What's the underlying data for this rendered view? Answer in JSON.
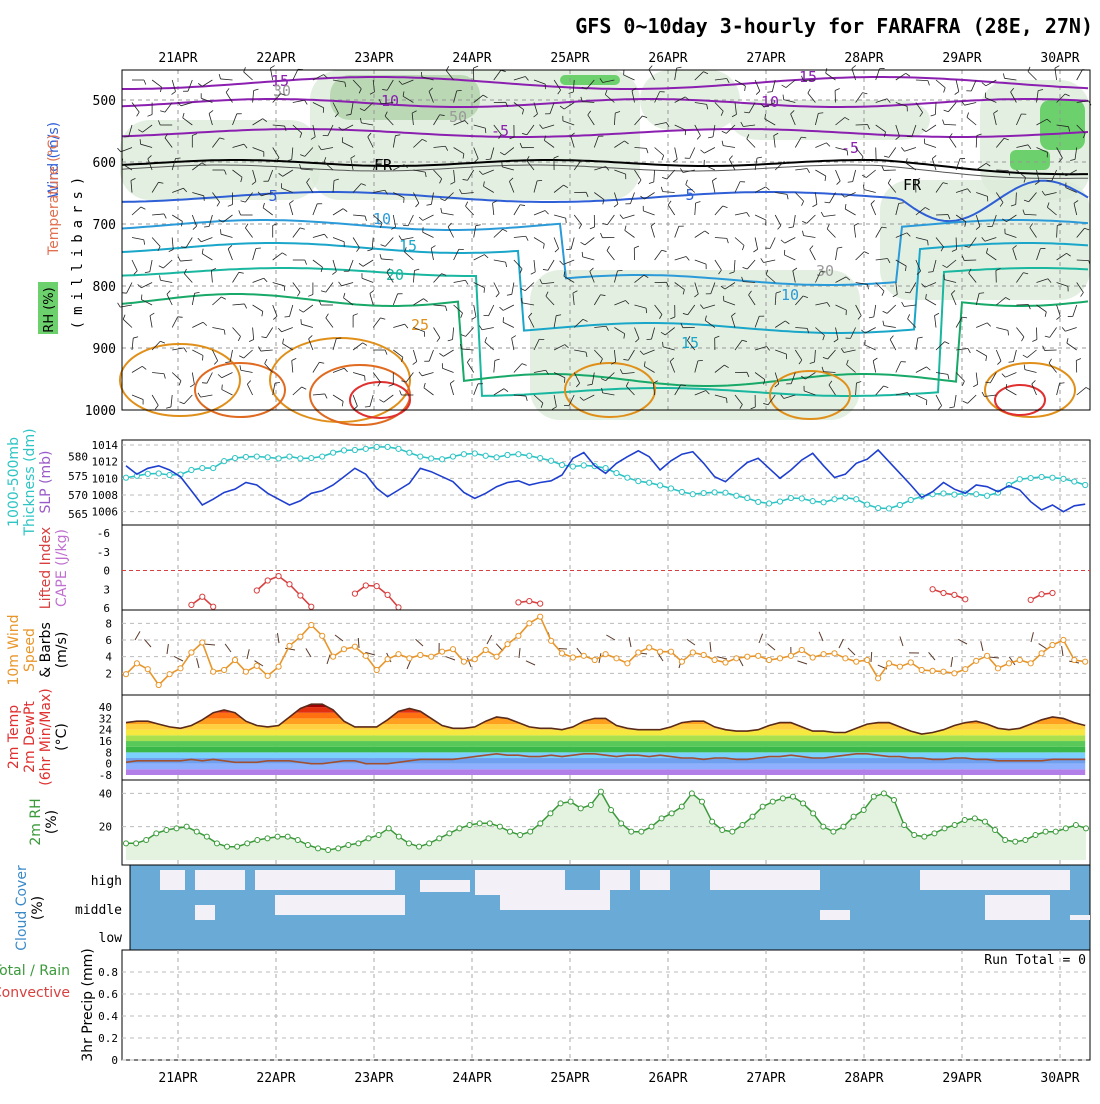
{
  "title": "GFS 0~10day 3-hourly for FARAFRA (28E, 27N)",
  "dates": [
    "21APR",
    "22APR",
    "23APR",
    "24APR",
    "25APR",
    "26APR",
    "27APR",
    "28APR",
    "29APR",
    "30APR"
  ],
  "colors": {
    "temp_purple": "#8b1fb0",
    "temp_blue": "#2f5fd6",
    "temp_cyan": "#1aa6c9",
    "temp_teal": "#19b6a0",
    "temp_orange": "#e0901a",
    "temp_red": "#e03030",
    "slp_line": "#1e3fcf",
    "thickness_line": "#2ec4c4",
    "cape": "#d84040",
    "wind10": "#e8962a",
    "rh2m": "#3a9a3a",
    "cloud": "#6aaad6",
    "rh_green": "#6cd06c"
  },
  "upper_panel": {
    "y_axis_label": "(millibars)",
    "side_labels": [
      "Wind (m/s)",
      "Temperature (°C)",
      "RH (%)"
    ],
    "pressure_ticks": [
      500,
      600,
      700,
      800,
      900,
      1000
    ],
    "isotherm_labels": [
      "15",
      "10",
      "-5",
      "FR",
      "5",
      "10",
      "15",
      "20",
      "25",
      "30",
      "10",
      "15",
      "5",
      "FR",
      "-5",
      "10",
      "15",
      "30",
      "50"
    ]
  },
  "panels": {
    "slp": {
      "labels": [
        "1000-500mb",
        "Thickness (dm)",
        "SLP (mb)"
      ]
    },
    "cape": {
      "labels": [
        "Lifted Index",
        "CAPE (J/kg)"
      ]
    },
    "wind10": {
      "labels": [
        "10m Wind",
        "Speed",
        "& Barbs",
        "(m/s)"
      ]
    },
    "temp2m": {
      "labels": [
        "2m Temp",
        "2m DewPt",
        "(6hr Min/Max)",
        "(°C)"
      ]
    },
    "rh2m": {
      "labels": [
        "2m RH",
        "(%)"
      ]
    },
    "cloud": {
      "labels": [
        "Cloud Cover",
        "(%)"
      ],
      "levels": [
        "high",
        "middle",
        "low"
      ]
    },
    "precip": {
      "labels": [
        "3hr Precip (mm)",
        "Total / Rain",
        "Convective"
      ],
      "run_total": "Run Total = 0"
    }
  },
  "chart_data": [
    {
      "type": "line",
      "title": "SLP (mb) / 1000-500mb Thickness (dm)",
      "series": [
        {
          "name": "SLP (mb)",
          "y_range": [
            1005,
            1014
          ],
          "values": [
            1011.5,
            1010.5,
            1011.2,
            1011.5,
            1011,
            1010.2,
            1008.5,
            1006.8,
            1007.5,
            1008.3,
            1008.7,
            1009.5,
            1009.2,
            1008.2,
            1007.5,
            1006.8,
            1007.3,
            1008.2,
            1008.5,
            1009.2,
            1010.2,
            1011.2,
            1010.5,
            1008.8,
            1007.8,
            1008.6,
            1009.4,
            1011.2,
            1010.8,
            1010.2,
            1009.6,
            1008.3,
            1007.6,
            1008.2,
            1009.0,
            1009.5,
            1009.7,
            1009.2,
            1009.5,
            1009.7,
            1010.4,
            1012.4,
            1013.1,
            1011.5,
            1010.6,
            1011.8,
            1012.6,
            1013.3,
            1012.6,
            1011.0,
            1012.1,
            1012.9,
            1013.2,
            1011.8,
            1010.2,
            1009.6,
            1010.8,
            1011.9,
            1012.4,
            1011.2,
            1010.0,
            1011.0,
            1012.2,
            1013.0,
            1011.5,
            1010.1,
            1010.5,
            1011.8,
            1012.3,
            1013.4,
            1012.0,
            1010.6,
            1009.2,
            1007.7,
            1008.4,
            1009.5,
            1008.7,
            1008.2,
            1009.2,
            1009.0,
            1008.4,
            1009.1,
            1008.6,
            1007.2,
            1006.2,
            1006.8,
            1006.0,
            1006.7,
            1006.9
          ]
        },
        {
          "name": "1000-500mb Thickness (dm)",
          "y_range": [
            563.5,
            583
          ],
          "values": [
            574.5,
            575.0,
            575.5,
            575.6,
            575.2,
            575.3,
            576.5,
            577.0,
            577.0,
            578.8,
            579.6,
            579.9,
            580.0,
            579.8,
            579.5,
            580.0,
            579.5,
            579.6,
            580.0,
            581.0,
            581.6,
            581.7,
            582.0,
            582.5,
            582.5,
            582.0,
            581.0,
            580.0,
            579.5,
            579.3,
            580.0,
            580.6,
            580.8,
            580.2,
            579.8,
            580.4,
            580.6,
            580.2,
            579.6,
            578.9,
            577.8,
            577.4,
            577.7,
            577.5,
            577.0,
            575.7,
            574.5,
            573.6,
            573.2,
            572.5,
            571.7,
            570.8,
            570.2,
            570.5,
            570.7,
            570.6,
            569.8,
            569.2,
            568.2,
            567.8,
            568.3,
            569.2,
            569.1,
            568.4,
            568.1,
            568.9,
            569.3,
            568.9,
            567.5,
            566.6,
            566.5,
            567.4,
            568.7,
            569.6,
            570.2,
            570.4,
            570.1,
            570.4,
            570.2,
            569.8,
            570.6,
            572.6,
            574.1,
            574.4,
            574.7,
            574.5,
            574.2,
            573.5,
            572.6
          ]
        }
      ],
      "x_range": [
        "21APR",
        "30APR"
      ]
    },
    {
      "type": "line",
      "title": "Lifted Index / CAPE (J/kg)",
      "series": [
        {
          "name": "Lifted Index",
          "y_range": [
            -6,
            6
          ],
          "values": [
            null,
            null,
            null,
            null,
            null,
            null,
            5.5,
            4.2,
            5.8,
            null,
            null,
            null,
            3.2,
            1.6,
            0.9,
            2.2,
            4.0,
            5.8,
            null,
            null,
            null,
            3.7,
            2.4,
            2.5,
            3.9,
            5.9,
            null,
            null,
            null,
            null,
            null,
            null,
            null,
            null,
            null,
            null,
            5.1,
            4.9,
            5.3,
            null,
            null,
            null,
            null,
            null,
            null,
            null,
            null,
            null,
            null,
            null,
            null,
            null,
            null,
            null,
            null,
            null,
            null,
            null,
            null,
            null,
            null,
            null,
            null,
            null,
            null,
            null,
            null,
            null,
            null,
            null,
            null,
            null,
            null,
            null,
            3.0,
            3.6,
            3.9,
            4.6,
            null,
            null,
            null,
            null,
            null,
            4.7,
            3.8,
            3.6,
            null,
            null,
            null
          ]
        }
      ],
      "y_ticks": [
        -6,
        -3,
        0,
        3,
        6
      ]
    },
    {
      "type": "line",
      "title": "10m Wind Speed & Barbs (m/s)",
      "y_range": [
        0,
        9
      ],
      "y_ticks": [
        2,
        4,
        6,
        8
      ],
      "series": [
        {
          "name": "10m Wind Speed",
          "values": [
            1.9,
            3.2,
            2.5,
            0.6,
            1.9,
            2.6,
            4.5,
            5.7,
            2.2,
            2.4,
            3.6,
            2.2,
            2.9,
            1.7,
            2.8,
            5.3,
            6.4,
            7.8,
            6.5,
            4.0,
            4.9,
            5.2,
            4.1,
            2.4,
            3.7,
            4.3,
            3.8,
            4.2,
            4.0,
            4.6,
            4.9,
            3.4,
            3.7,
            4.8,
            4.0,
            5.5,
            6.5,
            8.0,
            8.8,
            5.9,
            4.4,
            3.9,
            4.1,
            3.6,
            4.3,
            3.8,
            3.2,
            4.5,
            5.1,
            4.6,
            4.6,
            3.4,
            4.5,
            4.2,
            3.6,
            3.3,
            3.8,
            4.0,
            4.1,
            3.6,
            3.8,
            4.1,
            4.8,
            3.9,
            4.3,
            4.4,
            3.8,
            3.4,
            3.6,
            1.4,
            3.2,
            2.8,
            3.3,
            2.4,
            2.3,
            2.2,
            2.0,
            2.5,
            3.5,
            4.1,
            2.6,
            3.2,
            3.6,
            3.2,
            4.4,
            5.4,
            6.0,
            3.6,
            3.4
          ]
        }
      ]
    },
    {
      "type": "area",
      "title": "2m Temp / 2m DewPt (6hr Min/Max) (°C)",
      "y_range": [
        -8,
        45
      ],
      "y_ticks": [
        -8,
        0,
        8,
        16,
        24,
        32,
        40
      ],
      "series": [
        {
          "name": "2m Temp",
          "values": [
            29,
            30,
            30,
            28,
            26,
            25,
            27,
            31,
            36,
            38,
            36,
            30,
            27,
            26,
            27,
            33,
            39,
            42,
            42,
            38,
            30,
            26,
            26,
            26,
            31,
            37,
            39,
            37,
            32,
            27,
            25,
            25,
            26,
            30,
            33,
            32,
            29,
            26,
            25,
            25,
            24,
            26,
            30,
            32,
            32,
            27,
            25,
            24,
            24,
            24,
            26,
            29,
            30,
            30,
            26,
            24,
            23,
            23,
            24,
            27,
            29,
            29,
            26,
            23,
            23,
            22,
            22,
            25,
            28,
            29,
            29,
            26,
            23,
            21,
            22,
            24,
            27,
            29,
            30,
            28,
            25,
            24,
            25,
            28,
            31,
            33,
            32,
            29,
            27
          ]
        },
        {
          "name": "2m DewPt",
          "values": [
            1,
            2,
            2,
            2,
            2,
            2,
            3,
            2,
            3,
            2,
            1,
            1,
            1,
            2,
            2,
            2,
            1,
            0,
            0,
            1,
            2,
            2,
            0,
            0,
            0,
            1,
            2,
            3,
            3,
            3,
            3,
            4,
            5,
            6,
            7,
            6,
            6,
            5,
            5,
            6,
            5,
            6,
            7,
            7,
            6,
            5,
            6,
            6,
            5,
            6,
            5,
            4,
            4,
            3,
            4,
            4,
            3,
            3,
            4,
            5,
            5,
            6,
            5,
            4,
            4,
            5,
            6,
            7,
            7,
            6,
            5,
            5,
            4,
            4,
            3,
            3,
            4,
            4,
            3,
            3,
            2,
            2,
            2,
            2,
            2,
            3,
            3,
            3,
            3
          ]
        }
      ]
    },
    {
      "type": "area",
      "title": "2m RH (%)",
      "y_range": [
        0,
        45
      ],
      "y_ticks": [
        20,
        40
      ],
      "series": [
        {
          "name": "2m RH",
          "values": [
            10,
            10,
            12,
            16,
            18,
            19,
            20,
            17,
            14,
            10,
            8,
            8,
            10,
            12,
            13,
            14,
            14,
            12,
            9,
            7,
            6,
            7,
            9,
            10,
            13,
            15,
            19,
            14,
            10,
            8,
            10,
            13,
            16,
            19,
            21,
            22,
            22,
            20,
            17,
            15,
            17,
            22,
            28,
            34,
            35,
            31,
            33,
            41,
            30,
            22,
            17,
            17,
            20,
            25,
            28,
            32,
            40,
            35,
            23,
            18,
            17,
            21,
            26,
            32,
            35,
            37,
            38,
            34,
            28,
            20,
            17,
            20,
            26,
            30,
            38,
            40,
            36,
            21,
            15,
            14,
            16,
            19,
            21,
            24,
            25,
            23,
            18,
            12,
            11,
            12,
            15,
            17,
            17,
            19,
            21,
            19
          ]
        }
      ]
    },
    {
      "type": "bar",
      "title": "3hr Precip (mm)",
      "y_range": [
        0,
        1
      ],
      "y_ticks": [
        0,
        0.2,
        0.4,
        0.6,
        0.8
      ],
      "values": []
    }
  ]
}
